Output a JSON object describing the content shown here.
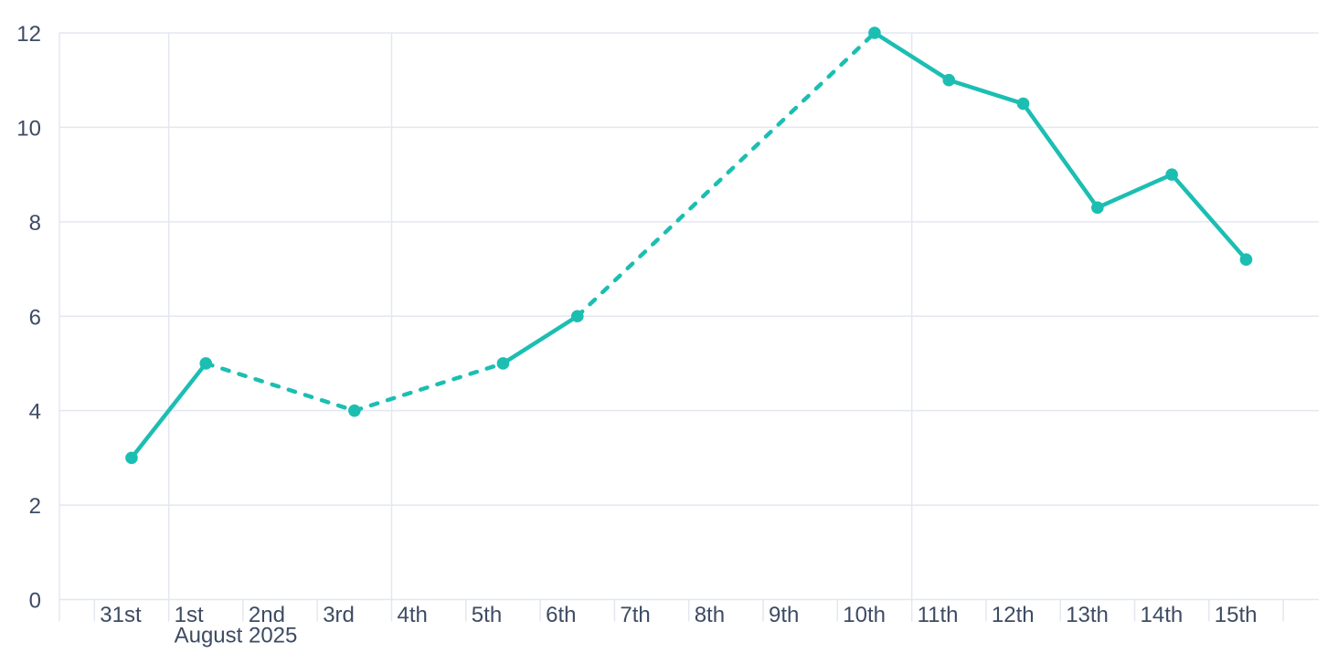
{
  "chart_data": {
    "type": "line",
    "title": "",
    "x_axis": {
      "tick_labels": [
        "31st",
        "1st",
        "2nd",
        "3rd",
        "4th",
        "5th",
        "6th",
        "7th",
        "8th",
        "9th",
        "10th",
        "11th",
        "12th",
        "13th",
        "14th",
        "15th"
      ],
      "month_label": "August 2025",
      "month_label_under": "1st",
      "vertical_gridlines_at": [
        "1st",
        "4th",
        "11th"
      ],
      "trailing_unlabeled_tick": true
    },
    "y_axis": {
      "ticks": [
        0,
        2,
        4,
        6,
        8,
        10,
        12
      ],
      "range": [
        0,
        12
      ],
      "grid": true
    },
    "series": [
      {
        "name": "value-by-day",
        "color": "#1cbeb2",
        "marker": "circle",
        "points": [
          {
            "date": "31st",
            "value": 3
          },
          {
            "date": "1st",
            "value": 5
          },
          {
            "date": "3rd",
            "value": 4
          },
          {
            "date": "5th",
            "value": 5
          },
          {
            "date": "6th",
            "value": 6
          },
          {
            "date": "10th",
            "value": 12
          },
          {
            "date": "11th",
            "value": 11
          },
          {
            "date": "12th",
            "value": 10.5
          },
          {
            "date": "13th",
            "value": 8.3
          },
          {
            "date": "14th",
            "value": 9
          },
          {
            "date": "15th",
            "value": 7.2
          }
        ],
        "missing_dates": [
          "2nd",
          "4th",
          "7th",
          "8th",
          "9th"
        ],
        "solid_style": "recorded",
        "gap_style": "dashed"
      }
    ],
    "legend": null,
    "colors": {
      "grid": "#e3e7f0",
      "label": "#3d4b63",
      "background": "#ffffff"
    }
  }
}
